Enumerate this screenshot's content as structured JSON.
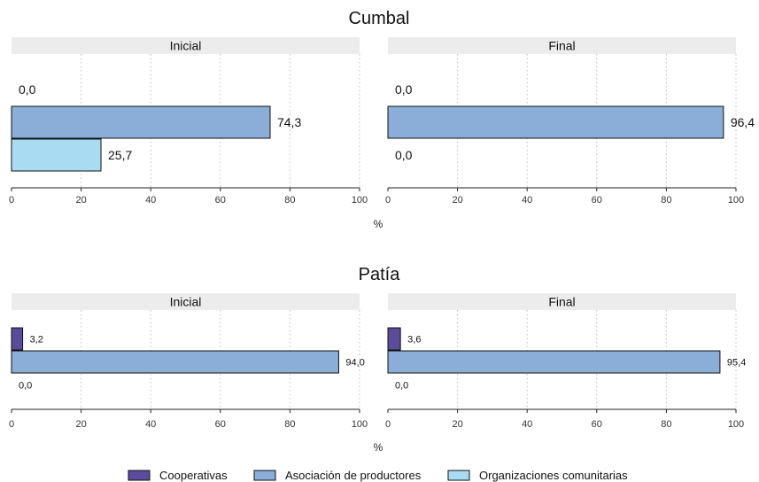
{
  "colors": {
    "Cooperativas": "#5b4b9b",
    "Asociación de productores": "#8aaed8",
    "Organizaciones comunitarias": "#a9dcf3",
    "strip_bg": "#ececec",
    "grid": "#bdbdbd"
  },
  "chart_data": {
    "type": "bar",
    "orientation": "horizontal",
    "unit_label": "%",
    "xlim": [
      0,
      100
    ],
    "xticks": [
      0,
      20,
      40,
      60,
      80,
      100
    ],
    "grid": "vertical dotted",
    "legend_position": "bottom",
    "legend": [
      "Cooperativas",
      "Asociación de productores",
      "Organizaciones comunitarias"
    ],
    "categories": [
      "Cooperativas",
      "Asociación de productores",
      "Organizaciones comunitarias"
    ],
    "groups": [
      {
        "title": "Cumbal",
        "panels": [
          {
            "name": "Inicial",
            "values": [
              0.0,
              74.3,
              25.7
            ],
            "labels": [
              "0,0",
              "74,3",
              "25,7"
            ]
          },
          {
            "name": "Final",
            "values": [
              0.0,
              96.4,
              0.0
            ],
            "labels": [
              "0,0",
              "96,4",
              "0,0"
            ]
          }
        ]
      },
      {
        "title": "Patía",
        "panels": [
          {
            "name": "Inicial",
            "values": [
              3.2,
              94.0,
              0.0
            ],
            "labels": [
              "3,2",
              "94,0",
              "0,0"
            ]
          },
          {
            "name": "Final",
            "values": [
              3.6,
              95.4,
              0.0
            ],
            "labels": [
              "3,6",
              "95,4",
              "0,0"
            ]
          }
        ]
      }
    ]
  }
}
